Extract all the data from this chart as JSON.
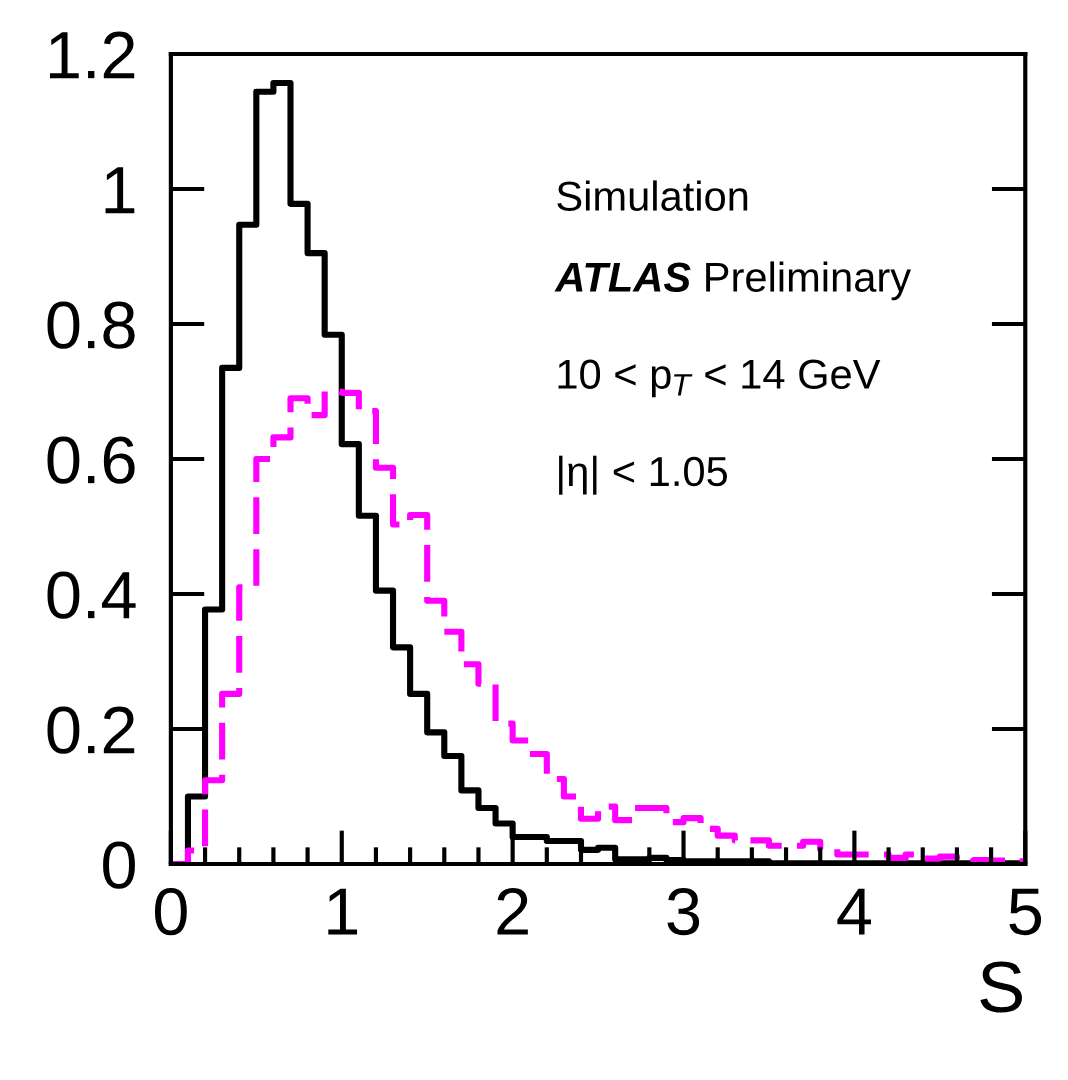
{
  "chart_data": {
    "type": "histogram",
    "xlabel": "S",
    "bins": [
      0,
      0.1,
      0.2,
      0.3,
      0.4,
      0.5,
      0.6,
      0.7,
      0.8,
      0.9,
      1.0,
      1.1,
      1.2,
      1.3,
      1.4,
      1.5,
      1.6,
      1.7,
      1.8,
      1.9,
      2.0,
      2.1,
      2.2,
      2.3,
      2.4,
      2.5,
      2.6,
      2.7,
      2.8,
      2.9,
      3.0,
      3.1,
      3.2,
      3.3,
      3.4,
      3.5,
      3.6,
      3.7,
      3.8,
      3.9,
      4.0,
      4.1,
      4.2,
      4.3,
      4.4,
      4.5,
      4.6,
      4.7,
      4.8,
      4.9,
      5.0
    ],
    "series": [
      {
        "color": "#000000",
        "line_style": "solid",
        "values": [
          0,
          0.1,
          0.377,
          0.735,
          0.947,
          1.144,
          1.157,
          0.978,
          0.905,
          0.784,
          0.622,
          0.516,
          0.405,
          0.321,
          0.252,
          0.195,
          0.16,
          0.109,
          0.083,
          0.06,
          0.04,
          0.04,
          0.034,
          0.034,
          0.021,
          0.024,
          0.007,
          0.007,
          0.009,
          0.006,
          0.004,
          0.004,
          0.004,
          0.004,
          0.004,
          0.001,
          0.001,
          0.001,
          0.001,
          0.001,
          0.001,
          0.001,
          0.001,
          0.001,
          0.001,
          0.001,
          0.001,
          0.001,
          0.001,
          0.001
        ]
      },
      {
        "color": "#ff00ff",
        "line_style": "dashed",
        "values": [
          0,
          0.02,
          0.124,
          0.252,
          0.41,
          0.6,
          0.632,
          0.69,
          0.665,
          0.7,
          0.698,
          0.671,
          0.587,
          0.503,
          0.517,
          0.39,
          0.344,
          0.296,
          0.267,
          0.208,
          0.183,
          0.163,
          0.126,
          0.1,
          0.067,
          0.085,
          0.065,
          0.083,
          0.083,
          0.062,
          0.068,
          0.052,
          0.042,
          0.035,
          0.035,
          0.027,
          0.027,
          0.033,
          0.022,
          0.014,
          0.014,
          0.014,
          0.009,
          0.014,
          0.008,
          0.011,
          0.004,
          0.006,
          0.005,
          0.004
        ]
      }
    ],
    "xlim": [
      0,
      5
    ],
    "ylim": [
      0,
      1.2
    ],
    "xticks": [
      0,
      1,
      2,
      3,
      4,
      5
    ],
    "yticks": [
      0,
      0.2,
      0.4,
      0.6,
      0.8,
      1,
      1.2
    ],
    "annotations": [
      "Simulation",
      "ATLAS Preliminary",
      "10 < p$_{T}$ < 14 GeV",
      "|η| < 1.05"
    ]
  }
}
